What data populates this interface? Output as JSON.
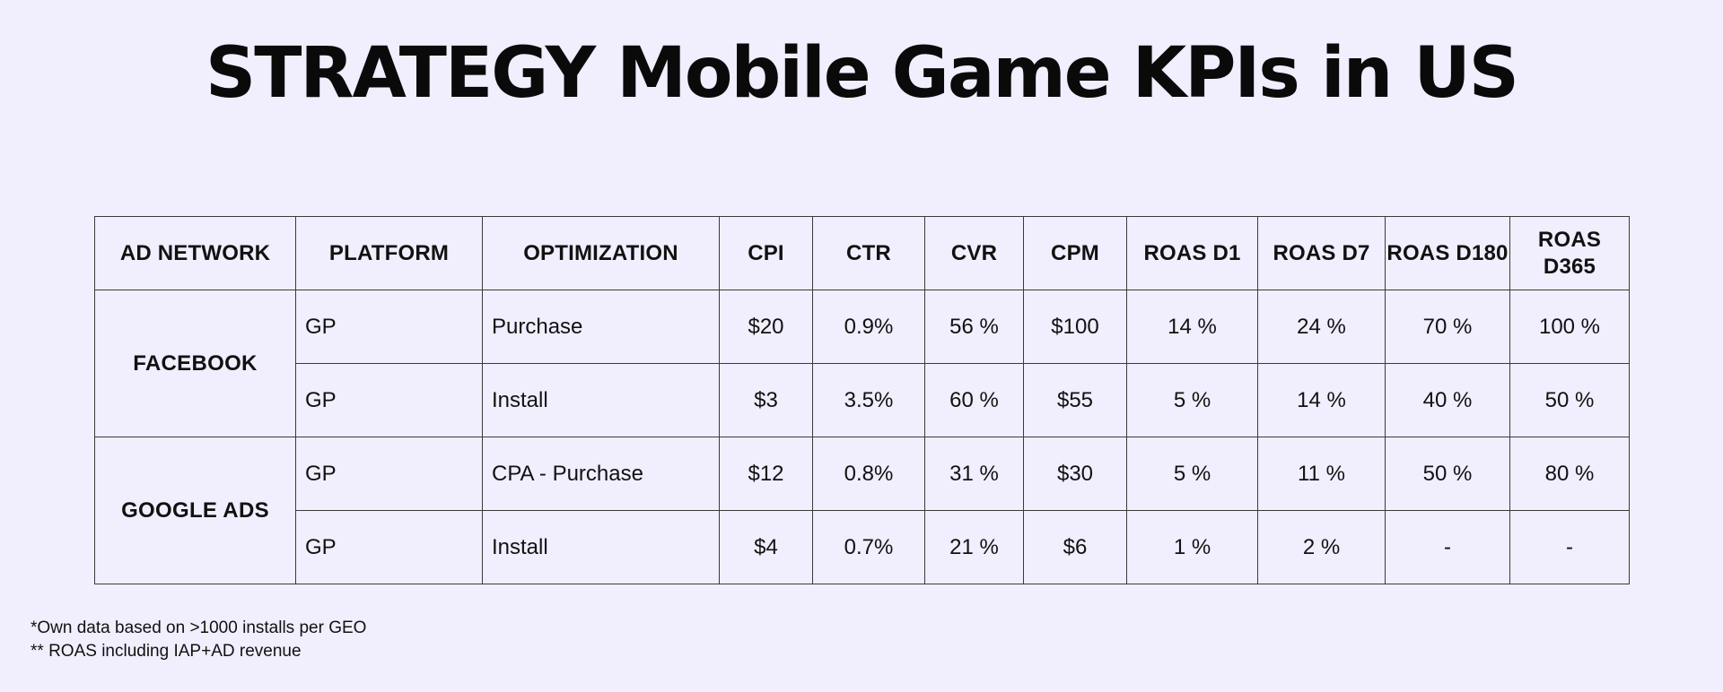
{
  "title": "STRATEGY Mobile Game KPIs in US",
  "table": {
    "headers": [
      "AD NETWORK",
      "PLATFORM",
      "OPTIMIZATION",
      "CPI",
      "CTR",
      "CVR",
      "CPM",
      "ROAS D1",
      "ROAS D7",
      "ROAS D180",
      "ROAS D365"
    ],
    "groups": [
      {
        "network": "FACEBOOK",
        "rows": [
          [
            "GP",
            "Purchase",
            "$20",
            "0.9%",
            "56 %",
            "$100",
            "14 %",
            "24 %",
            "70 %",
            "100 %"
          ],
          [
            "GP",
            "Install",
            "$3",
            "3.5%",
            "60 %",
            "$55",
            "5 %",
            "14 %",
            "40 %",
            "50 %"
          ]
        ]
      },
      {
        "network": "GOOGLE ADS",
        "rows": [
          [
            "GP",
            "CPA - Purchase",
            "$12",
            "0.8%",
            "31 %",
            "$30",
            "5 %",
            "11 %",
            "50 %",
            "80 %"
          ],
          [
            "GP",
            "Install",
            "$4",
            "0.7%",
            "21 %",
            "$6",
            "1 %",
            "2 %",
            "-",
            "-"
          ]
        ]
      }
    ]
  },
  "footnotes": {
    "line1": "*Own data based on >1000 installs per GEO",
    "line2": "** ROAS including IAP+AD revenue"
  }
}
